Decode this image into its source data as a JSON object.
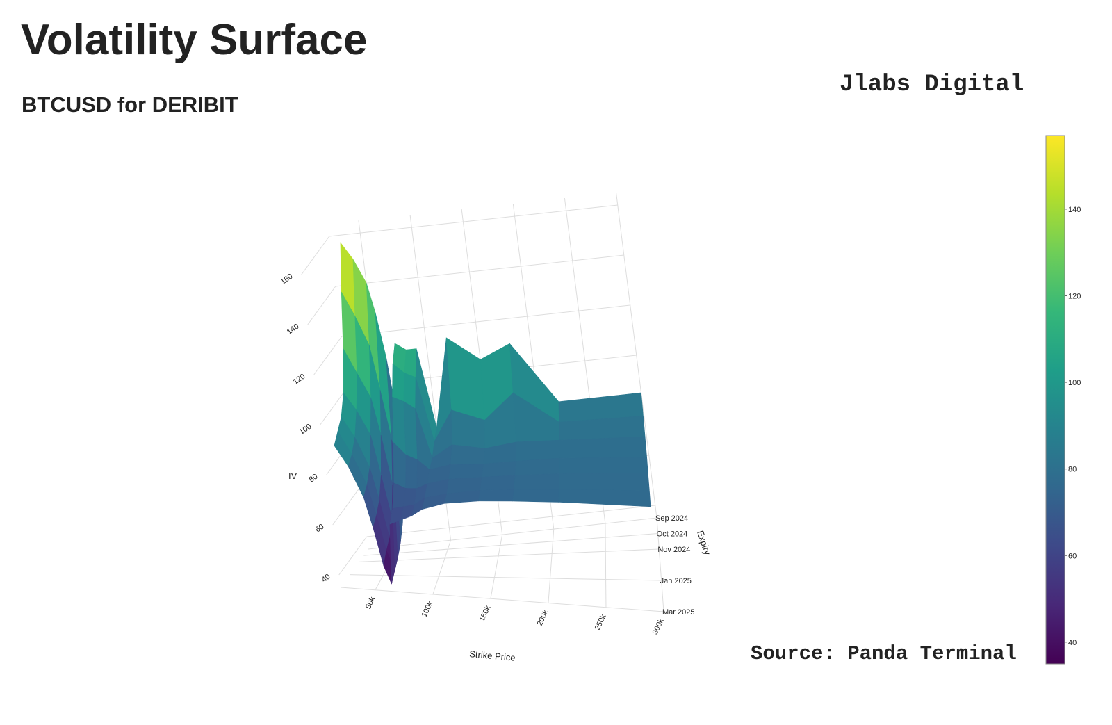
{
  "title": "Volatility Surface",
  "subtitle": "BTCUSD for DERIBIT",
  "brand": "Jlabs Digital",
  "source": "Source: Panda Terminal",
  "chart_data": {
    "type": "surface",
    "x_label": "Strike Price",
    "y_label": "Expiry",
    "z_label": "IV",
    "x": [
      30000,
      40000,
      50000,
      55000,
      60000,
      65000,
      70000,
      80000,
      90000,
      100000,
      120000,
      150000,
      180000,
      220000,
      300000
    ],
    "y": [
      "Sep 2024",
      "Oct 2024",
      "Nov 2024",
      null,
      "Jan 2025",
      null,
      "Mar 2025"
    ],
    "z": [
      [
        157,
        150,
        140,
        128,
        110,
        75,
        115,
        112,
        112,
        80,
        115,
        105,
        110,
        85,
        85
      ],
      [
        140,
        130,
        118,
        100,
        80,
        60,
        110,
        106,
        104,
        78,
        90,
        85,
        95,
        82,
        82
      ],
      [
        120,
        110,
        100,
        85,
        65,
        50,
        100,
        98,
        95,
        75,
        80,
        78,
        80,
        80,
        80
      ],
      [
        105,
        98,
        88,
        72,
        55,
        45,
        85,
        80,
        78,
        74,
        76,
        76,
        77,
        78,
        78
      ],
      [
        98,
        90,
        78,
        65,
        50,
        42,
        72,
        70,
        70,
        72,
        74,
        75,
        76,
        77,
        78
      ],
      [
        95,
        86,
        74,
        62,
        48,
        40,
        65,
        66,
        67,
        70,
        72,
        74,
        75,
        76,
        77
      ],
      [
        92,
        84,
        72,
        60,
        45,
        38,
        62,
        64,
        66,
        69,
        72,
        74,
        75,
        76,
        77
      ]
    ],
    "xlim": [
      20000,
      300000
    ],
    "xticks": [
      {
        "value": 50000,
        "label": "50k"
      },
      {
        "value": 100000,
        "label": "100k"
      },
      {
        "value": 150000,
        "label": "150k"
      },
      {
        "value": 200000,
        "label": "200k"
      },
      {
        "value": 250000,
        "label": "250k"
      },
      {
        "value": 300000,
        "label": "300k"
      }
    ],
    "zlim": [
      35,
      165
    ],
    "zticks": [
      40,
      60,
      80,
      100,
      120,
      140,
      160
    ],
    "colorscale": [
      "#440154",
      "#482878",
      "#3e4989",
      "#31688e",
      "#26828e",
      "#1f9e89",
      "#35b779",
      "#6ece58",
      "#b5de2b",
      "#fde725"
    ],
    "colorbar": {
      "lim": [
        35,
        157
      ],
      "ticks": [
        40,
        60,
        80,
        100,
        120,
        140
      ]
    },
    "grid": true
  }
}
